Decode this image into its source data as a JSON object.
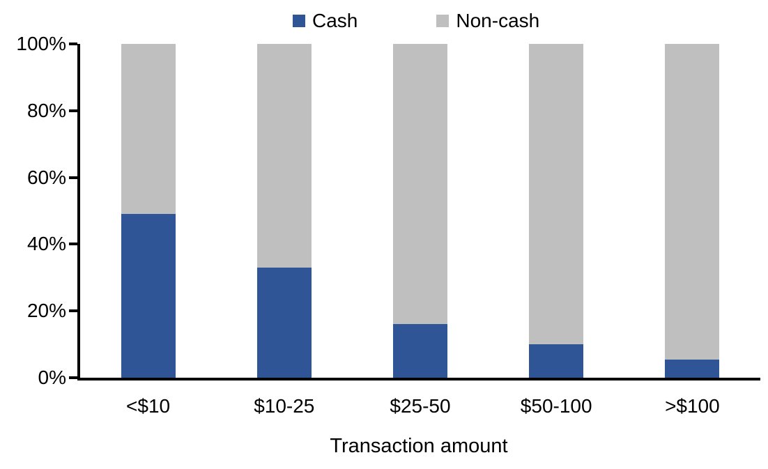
{
  "chart_data": {
    "type": "bar",
    "stacked": true,
    "percent_stacked": true,
    "title": "",
    "xlabel": "Transaction amount",
    "ylabel": "",
    "categories": [
      "<$10",
      "$10-25",
      "$25-50",
      "$50-100",
      ">$100"
    ],
    "series": [
      {
        "name": "Cash",
        "color": "#2F5596",
        "values": [
          49,
          33,
          16,
          10,
          5.5
        ]
      },
      {
        "name": "Non-cash",
        "color": "#BFBFBF",
        "values": [
          51,
          67,
          84,
          90,
          94.5
        ]
      }
    ],
    "ylim": [
      0,
      100
    ],
    "y_ticks": [
      "0%",
      "20%",
      "40%",
      "60%",
      "80%",
      "100%"
    ],
    "grid": false,
    "legend_position": "top",
    "axis_color": "#000000",
    "background_color": "#FFFFFF"
  }
}
